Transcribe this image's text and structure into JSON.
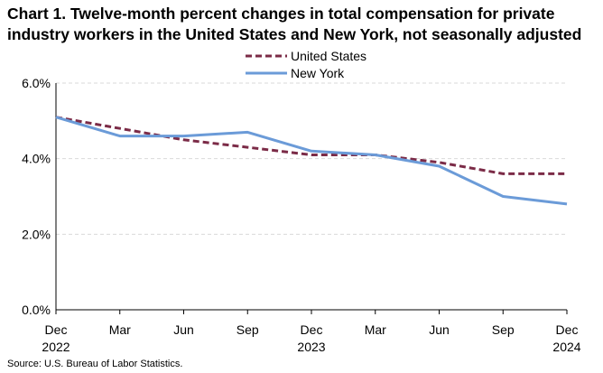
{
  "chart_data": {
    "type": "line",
    "title": "Chart 1. Twelve-month percent changes in total compensation for private industry workers in the United States and New York, not seasonally adjusted",
    "x": [
      "Dec 2022",
      "Mar 2023",
      "Jun 2023",
      "Sep 2023",
      "Dec 2023",
      "Mar 2024",
      "Jun 2024",
      "Sep 2024",
      "Dec 2024"
    ],
    "tick_labels": [
      {
        "month": "Dec",
        "year": "2022"
      },
      {
        "month": "Mar",
        "year": ""
      },
      {
        "month": "Jun",
        "year": ""
      },
      {
        "month": "Sep",
        "year": ""
      },
      {
        "month": "Dec",
        "year": "2023"
      },
      {
        "month": "Mar",
        "year": ""
      },
      {
        "month": "Jun",
        "year": ""
      },
      {
        "month": "Sep",
        "year": ""
      },
      {
        "month": "Dec",
        "year": "2024"
      }
    ],
    "series": [
      {
        "name": "United States",
        "values": [
          5.1,
          4.8,
          4.5,
          4.3,
          4.1,
          4.1,
          3.9,
          3.6,
          3.6
        ],
        "color": "#7b2b47",
        "style": "dashed"
      },
      {
        "name": "New York",
        "values": [
          5.1,
          4.6,
          4.6,
          4.7,
          4.2,
          4.1,
          3.8,
          3.0,
          2.8
        ],
        "color": "#6b9bd8",
        "style": "solid"
      }
    ],
    "yticks": [
      {
        "value": 0,
        "label": "0.0%"
      },
      {
        "value": 2,
        "label": "2.0%"
      },
      {
        "value": 4,
        "label": "4.0%"
      },
      {
        "value": 6,
        "label": "6.0%"
      }
    ],
    "ylim": [
      0,
      6
    ],
    "xlabel": "",
    "ylabel": "",
    "grid": true,
    "legend_position": "top-center"
  },
  "source_note": "Source: U.S. Bureau of Labor Statistics."
}
